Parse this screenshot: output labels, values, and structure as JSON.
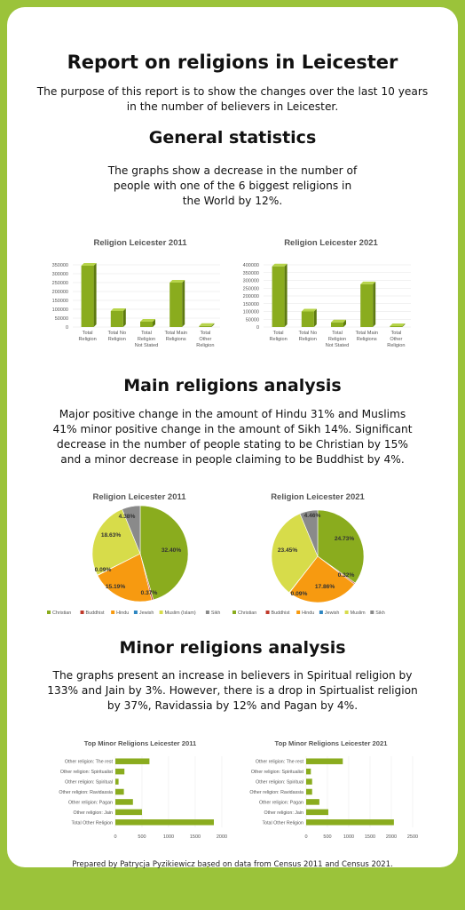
{
  "title": "Report on religions in Leicester",
  "intro": "The purpose of this report is to show the changes over the last 10 years in the number of believers in Leicester.",
  "sections": {
    "general": {
      "heading": "General statistics",
      "text": "The graphs show a decrease in the number of people with one of the 6 biggest religions in the World by 12%."
    },
    "main": {
      "heading": "Main religions analysis",
      "text": "Major positive change in the amount of Hindu 31% and Muslims 41% minor positive change in the amount of Sikh 14%. Significant decrease in the number of people stating to be Christian by 15% and a minor decrease in people claiming to be Buddhist by 4%."
    },
    "minor": {
      "heading": "Minor religions analysis",
      "text": "The graphs present an increase in believers in Spiritual religion by 133% and Jain by 3%. However, there is a drop in Spirtualist religion by 37%, Ravidassia by 12% and Pagan by 4%."
    }
  },
  "footer": "Prepared by Patrycja Pyzikiewicz based on data from Census 2011 and Census 2021.",
  "colors": {
    "accent": "#9bc33a",
    "bar": "#8aac1e"
  },
  "chart_data": [
    {
      "type": "bar",
      "title": "Religion Leicester 2011",
      "categories": [
        [
          "Total",
          "Religion"
        ],
        [
          "Total No",
          "Religion"
        ],
        [
          "Total",
          "Religion",
          "Not Stated"
        ],
        [
          "Total Main",
          "Religions"
        ],
        [
          "Total",
          "Other",
          "Religion"
        ]
      ],
      "values": [
        345000,
        90000,
        30000,
        250000,
        6000
      ],
      "yticks": [
        "0",
        "50000",
        "100000",
        "150000",
        "200000",
        "250000",
        "300000",
        "350000"
      ],
      "ylim": [
        0,
        350000
      ]
    },
    {
      "type": "bar",
      "title": "Religion Leicester 2021",
      "categories": [
        [
          "Total",
          "Religion"
        ],
        [
          "Total No",
          "Religion"
        ],
        [
          "Total",
          "Religion",
          "Not Stated"
        ],
        [
          "Total Main",
          "Religions"
        ],
        [
          "Total",
          "Other",
          "Religion"
        ]
      ],
      "values": [
        390000,
        100000,
        30000,
        275000,
        6000
      ],
      "yticks": [
        "0",
        "50000",
        "100000",
        "150000",
        "200000",
        "250000",
        "300000",
        "350000",
        "400000"
      ],
      "ylim": [
        0,
        400000
      ]
    },
    {
      "type": "pie",
      "title": "Religion Leicester 2011",
      "labels": [
        "Christian",
        "Buddhist",
        "Hindu",
        "Jewish",
        "Muslim (Islam)",
        "Sikh"
      ],
      "values": [
        32.4,
        0.37,
        15.19,
        0.09,
        18.63,
        4.38
      ],
      "value_labels": [
        "32.40%",
        "0.37%",
        "15.19%",
        "0.09%",
        "18.63%",
        "4.38%"
      ],
      "colors": [
        "#8aac1e",
        "#c0392b",
        "#f79a10",
        "#2e86c1",
        "#d7dc4a",
        "#8a8a8a"
      ]
    },
    {
      "type": "pie",
      "title": "Religion Leicester 2021",
      "labels": [
        "Christian",
        "Buddhist",
        "Hindu",
        "Jewish",
        "Muslim",
        "Sikh"
      ],
      "values": [
        24.73,
        0.32,
        17.86,
        0.09,
        23.45,
        4.46
      ],
      "value_labels": [
        "24.73%",
        "0.32%",
        "17.86%",
        "0.09%",
        "23.45%",
        "4.46%"
      ],
      "colors": [
        "#8aac1e",
        "#c0392b",
        "#f79a10",
        "#2e86c1",
        "#d7dc4a",
        "#8a8a8a"
      ]
    },
    {
      "type": "bar",
      "orientation": "horizontal",
      "title": "Top Minor Religions Leicester 2011",
      "categories": [
        "Other religion: The rest",
        "Other religion: Spiritualist",
        "Other religion: Spiritual",
        "Other religion: Ravidassia",
        "Other religion: Pagan",
        "Other religion: Jain",
        "Total Other Religion"
      ],
      "values": [
        640,
        170,
        60,
        160,
        330,
        500,
        1850
      ],
      "xticks": [
        "0",
        "500",
        "1000",
        "1500",
        "2000"
      ],
      "xlim": [
        0,
        2000
      ]
    },
    {
      "type": "bar",
      "orientation": "horizontal",
      "title": "Top Minor Religions Leicester 2021",
      "categories": [
        "Other religion: The rest",
        "Other religion: Spiritualist",
        "Other religion: Spiritual",
        "Other religion: Ravidassia",
        "Other religion: Pagan",
        "Other religion: Jain",
        "Total Other Religion"
      ],
      "values": [
        860,
        110,
        140,
        140,
        310,
        520,
        2060
      ],
      "xticks": [
        "0",
        "500",
        "1000",
        "1500",
        "2000",
        "2500"
      ],
      "xlim": [
        0,
        2500
      ]
    }
  ]
}
